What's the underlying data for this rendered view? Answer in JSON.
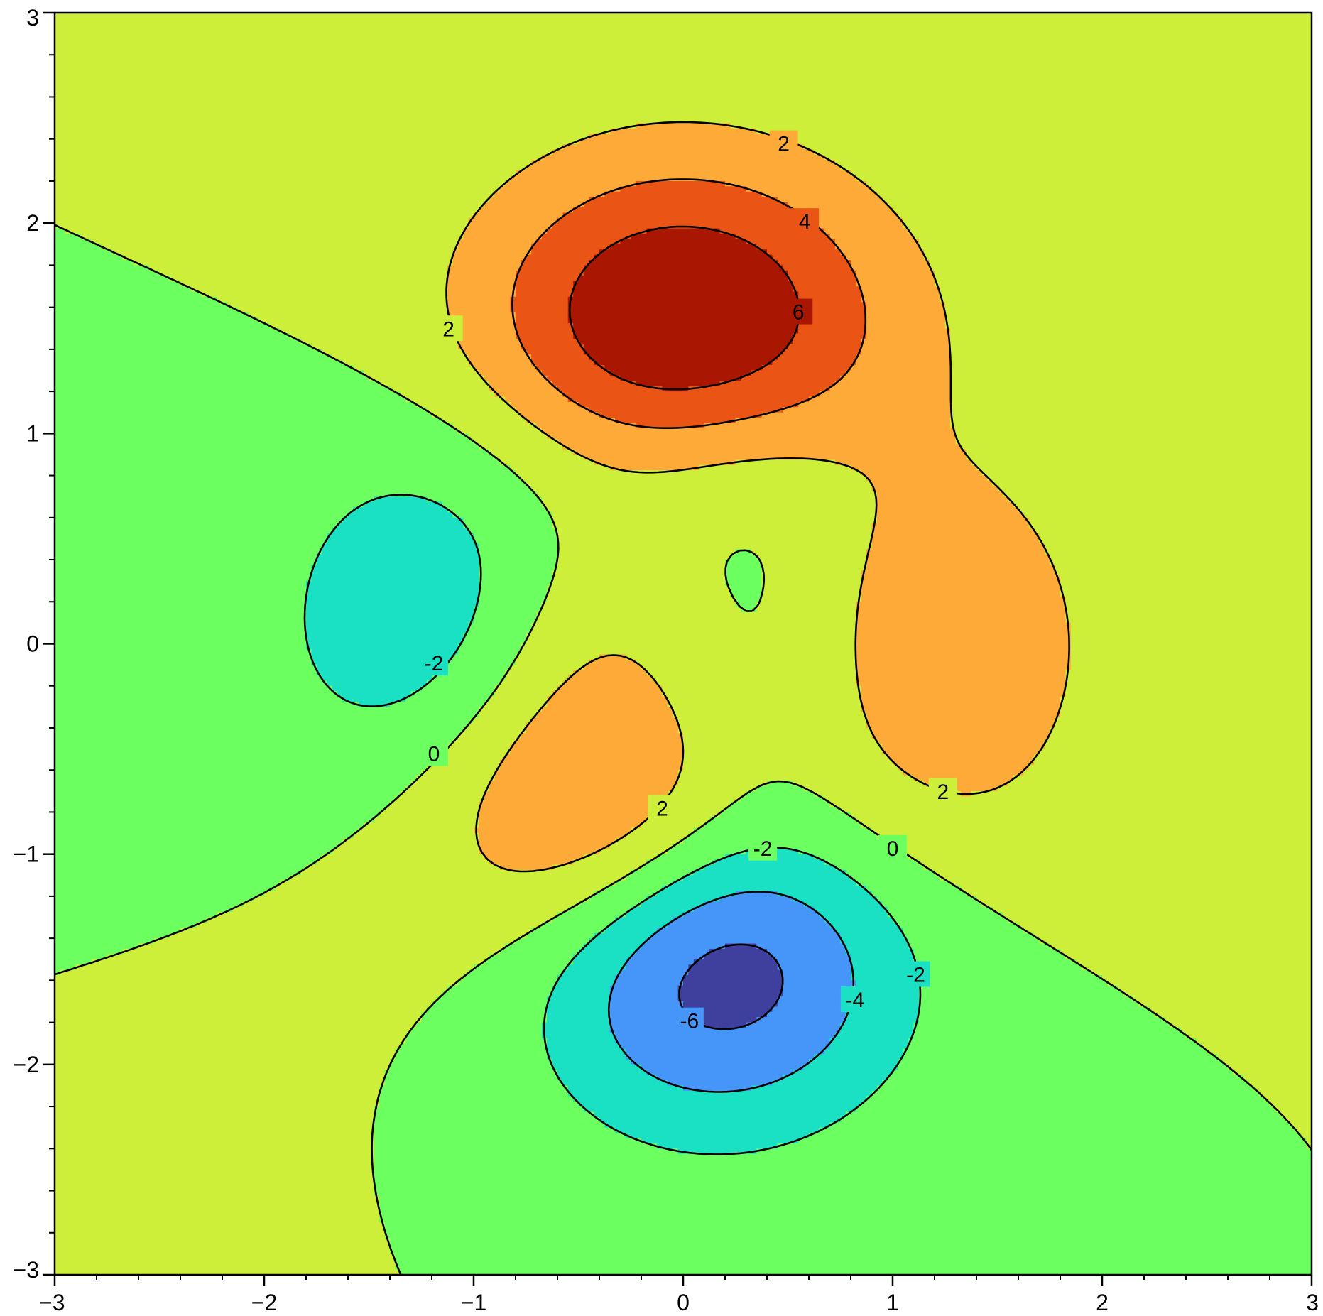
{
  "chart_data": {
    "type": "contour",
    "title": "",
    "xlabel": "",
    "ylabel": "",
    "xlim": [
      -3,
      3
    ],
    "ylim": [
      -3,
      3
    ],
    "grid": false,
    "function": "peaks",
    "x_ticks": [
      -3,
      -2,
      -1,
      0,
      1,
      2,
      3
    ],
    "y_ticks": [
      -3,
      -2,
      -1,
      0,
      1,
      2,
      3
    ],
    "x_tick_labels": [
      "−3",
      "−2",
      "−1",
      "0",
      "1",
      "2",
      "3"
    ],
    "y_tick_labels": [
      "−3",
      "−2",
      "−1",
      "0",
      "1",
      "2",
      "3"
    ],
    "minor_tick_step": 0.2,
    "fill_levels": [
      -10,
      -6,
      -4,
      -2,
      0,
      2,
      4,
      6,
      10
    ],
    "fill_colors": [
      "#3f3f9e",
      "#4696fa",
      "#1ae0c4",
      "#6cff60",
      "#ceef3a",
      "#fdaa38",
      "#ea5516",
      "#a91703"
    ],
    "line_levels": [
      -6,
      -4,
      -2,
      0,
      2,
      4,
      6
    ],
    "line_color": "#000000",
    "contour_labels": [
      {
        "text": "2",
        "x": 0.48,
        "y": 2.38
      },
      {
        "text": "4",
        "x": 0.58,
        "y": 2.01
      },
      {
        "text": "6",
        "x": 0.55,
        "y": 1.58
      },
      {
        "text": "2",
        "x": -1.12,
        "y": 1.5
      },
      {
        "text": "-2",
        "x": -1.19,
        "y": -0.09
      },
      {
        "text": "0",
        "x": -1.19,
        "y": -0.52
      },
      {
        "text": "2",
        "x": -0.1,
        "y": -0.78
      },
      {
        "text": "2",
        "x": 1.24,
        "y": -0.7
      },
      {
        "text": "0",
        "x": 1.0,
        "y": -0.97
      },
      {
        "text": "-2",
        "x": 0.38,
        "y": -0.97
      },
      {
        "text": "-2",
        "x": 1.11,
        "y": -1.57
      },
      {
        "text": "-4",
        "x": 0.82,
        "y": -1.69
      },
      {
        "text": "-6",
        "x": 0.03,
        "y": -1.79
      }
    ]
  }
}
